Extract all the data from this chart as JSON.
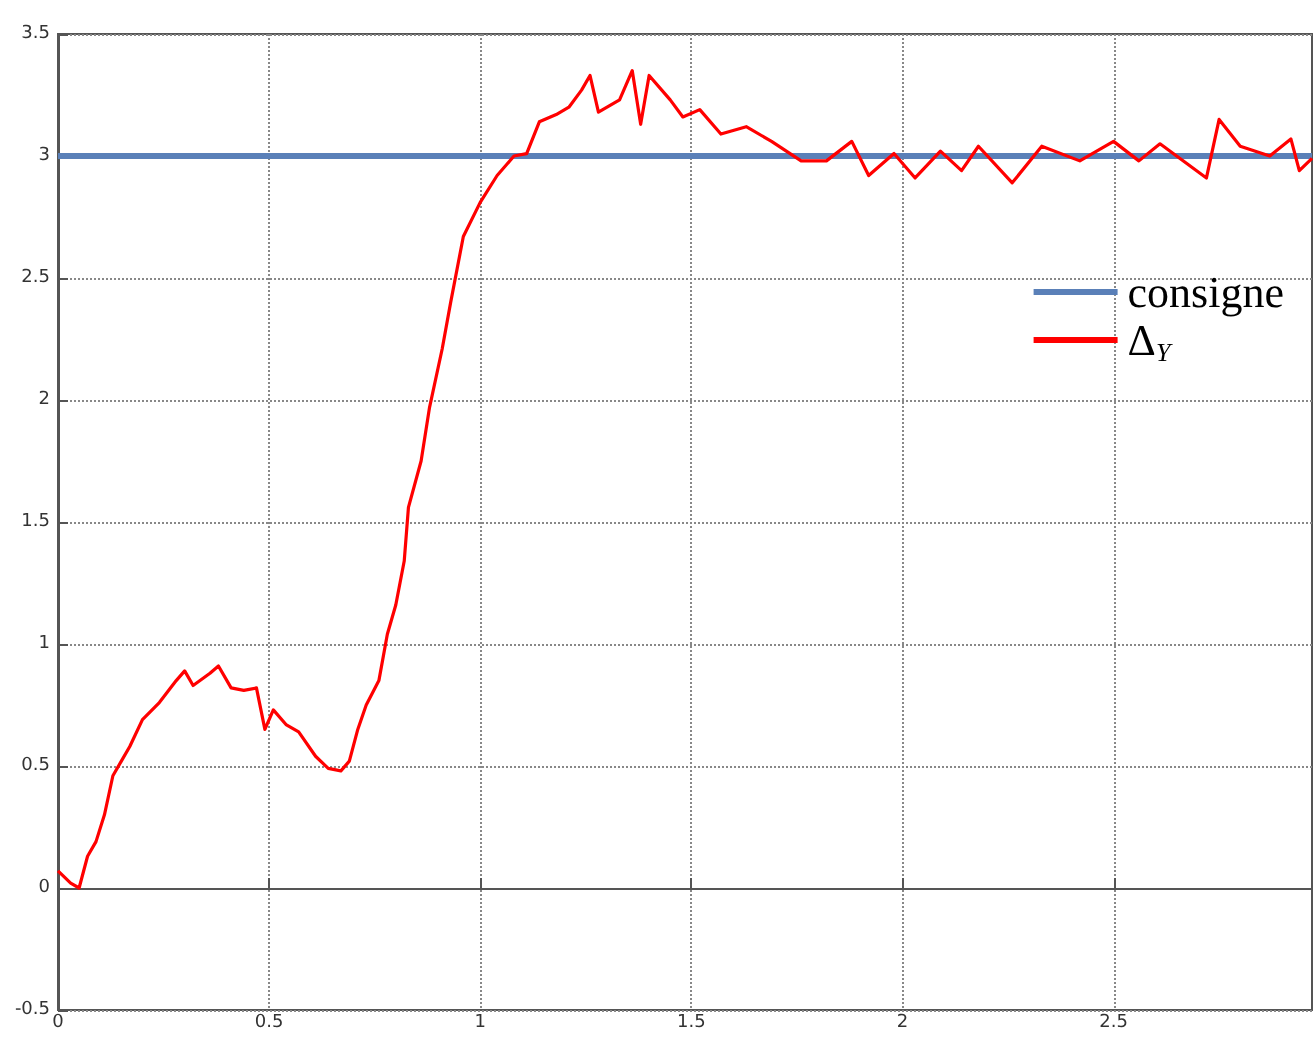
{
  "chart_data": {
    "type": "line",
    "xlim": [
      0,
      2.97
    ],
    "xticks": [
      0,
      0.5,
      1,
      1.5,
      2,
      2.5
    ],
    "ylim": [
      -0.5,
      3.5
    ],
    "yticks": [
      -0.5,
      0,
      0.5,
      1,
      1.5,
      2,
      2.5,
      3,
      3.5
    ],
    "grid": true,
    "legend": "right",
    "marker": "none",
    "line_style": "solid",
    "series": [
      {
        "name": "consigne",
        "color": "#5a80b8",
        "x": [
          0,
          2.97
        ],
        "values": [
          3,
          3
        ]
      },
      {
        "name": "Δ$_{Y}$",
        "color": "#ff0000",
        "x": [
          0,
          0.03,
          0.05,
          0.07,
          0.09,
          0.11,
          0.13,
          0.15,
          0.17,
          0.2,
          0.24,
          0.28,
          0.3,
          0.32,
          0.36,
          0.38,
          0.41,
          0.44,
          0.47,
          0.49,
          0.51,
          0.54,
          0.57,
          0.61,
          0.64,
          0.67,
          0.69,
          0.71,
          0.73,
          0.76,
          0.78,
          0.8,
          0.82,
          0.83,
          0.86,
          0.88,
          0.91,
          0.93,
          0.96,
          1.0,
          1.04,
          1.08,
          1.11,
          1.14,
          1.18,
          1.21,
          1.24,
          1.26,
          1.28,
          1.33,
          1.36,
          1.38,
          1.4,
          1.45,
          1.48,
          1.52,
          1.57,
          1.63,
          1.69,
          1.76,
          1.82,
          1.88,
          1.92,
          1.98,
          2.03,
          2.09,
          2.14,
          2.18,
          2.26,
          2.33,
          2.42,
          2.5,
          2.56,
          2.61,
          2.72,
          2.75,
          2.8,
          2.87,
          2.92,
          2.94,
          2.97
        ],
        "values": [
          0.07,
          0.02,
          0.0,
          0.13,
          0.19,
          0.3,
          0.46,
          0.52,
          0.58,
          0.69,
          0.76,
          0.85,
          0.89,
          0.83,
          0.88,
          0.91,
          0.82,
          0.81,
          0.82,
          0.65,
          0.73,
          0.67,
          0.64,
          0.54,
          0.49,
          0.48,
          0.52,
          0.65,
          0.75,
          0.85,
          1.04,
          1.16,
          1.34,
          1.56,
          1.75,
          1.97,
          2.21,
          2.4,
          2.67,
          2.81,
          2.92,
          3.0,
          3.01,
          3.14,
          3.17,
          3.2,
          3.27,
          3.33,
          3.18,
          3.23,
          3.35,
          3.13,
          3.33,
          3.23,
          3.16,
          3.19,
          3.09,
          3.12,
          3.06,
          2.98,
          2.98,
          3.06,
          2.92,
          3.01,
          2.91,
          3.02,
          2.94,
          3.04,
          2.89,
          3.04,
          2.98,
          3.06,
          2.98,
          3.05,
          2.91,
          3.15,
          3.04,
          3.0,
          3.07,
          2.94,
          2.99
        ]
      }
    ]
  }
}
